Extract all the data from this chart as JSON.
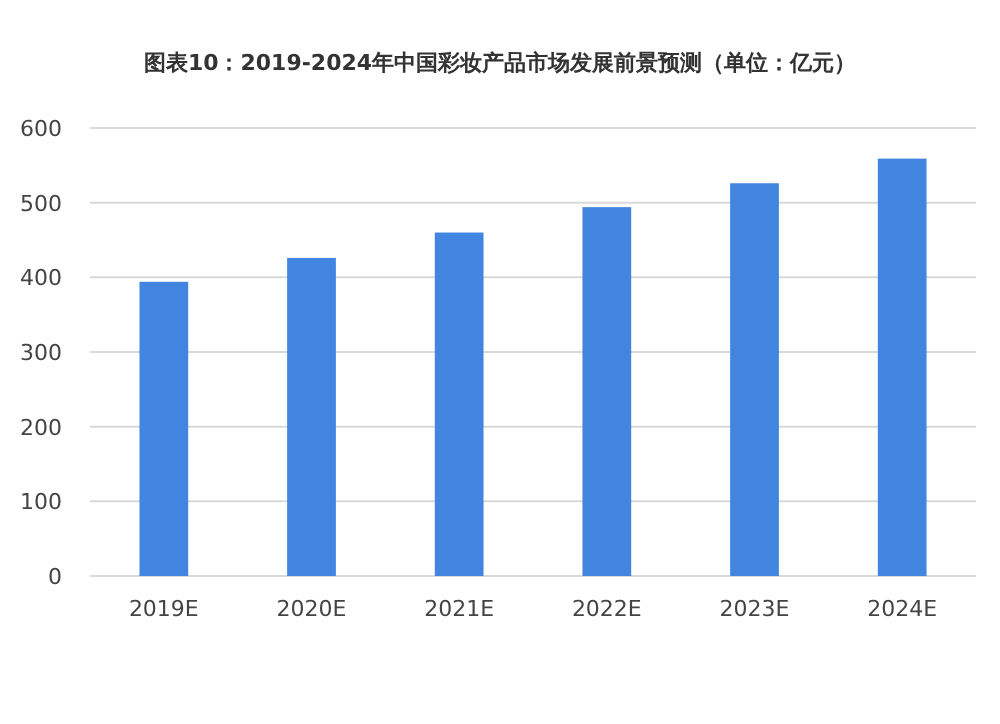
{
  "chart_data": {
    "type": "bar",
    "title": "图表10：2019-2024年中国彩妆产品市场发展前景预测（单位：亿元）",
    "categories": [
      "2019E",
      "2020E",
      "2021E",
      "2022E",
      "2023E",
      "2024E"
    ],
    "values": [
      394,
      426,
      460,
      494,
      526,
      559
    ],
    "color": "#4185e0",
    "ylim": [
      0,
      600
    ],
    "yticks": [
      0,
      100,
      200,
      300,
      400,
      500,
      600
    ],
    "grid": "y"
  }
}
